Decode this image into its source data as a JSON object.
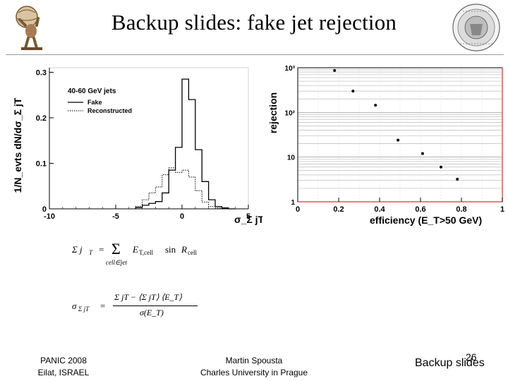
{
  "slide": {
    "title": "Backup slides: fake jet rejection",
    "footer_left_line1": "PANIC 2008",
    "footer_left_line2": "Eilat, ISRAEL",
    "footer_center_line1": "Martin Spousta",
    "footer_center_line2": "Charles University in Prague",
    "footer_right": "Backup slides",
    "slide_number": "26"
  },
  "chart_data": [
    {
      "type": "line",
      "legend_title": "40-60 GeV jets",
      "ylabel": "1/N_evts dN/dσ_Σ jT",
      "xlabel": "σ_Σ jT",
      "x_ticks": [
        "-10",
        "-5",
        "0",
        "5"
      ],
      "y_ticks": [
        "0",
        "0.1",
        "0.2",
        "0.3"
      ],
      "xlim": [
        -10,
        5
      ],
      "ylim": [
        0,
        0.31
      ],
      "bin_edges": [
        -3.5,
        -3,
        -2.5,
        -2,
        -1.5,
        -1,
        -0.5,
        0,
        0.5,
        1,
        1.5,
        2,
        2.5,
        3,
        3.5,
        4
      ],
      "legend_position": "top-left",
      "series": [
        {
          "name": "Fake",
          "style": "solid",
          "values": [
            0.003,
            0.008,
            0.012,
            0.016,
            0.035,
            0.085,
            0.135,
            0.285,
            0.24,
            0.13,
            0.06,
            0.02,
            0.005,
            0.002,
            0.0
          ]
        },
        {
          "name": "Reconstructed",
          "style": "dotted",
          "values": [
            0.005,
            0.02,
            0.035,
            0.048,
            0.075,
            0.09,
            0.08,
            0.085,
            0.07,
            0.04,
            0.015,
            0.005,
            0.002,
            0.0,
            0.0
          ]
        }
      ]
    },
    {
      "type": "scatter",
      "ylabel": "rejection",
      "xlabel": "efficiency (E_T>50 GeV)",
      "x_ticks": [
        "0",
        "0.2",
        "0.4",
        "0.6",
        "0.8",
        "1"
      ],
      "y_ticks": [
        "1",
        "10",
        "10²",
        "10³"
      ],
      "xlim": [
        0,
        1
      ],
      "ylim": [
        1,
        1000
      ],
      "y_scale": "log",
      "grid": true,
      "x": [
        0.18,
        0.27,
        0.38,
        0.49,
        0.61,
        0.7,
        0.78
      ],
      "y": [
        870,
        300,
        145,
        24,
        12,
        6,
        3.2
      ]
    }
  ],
  "formulas": {
    "f1_lhs": "Σ j",
    "f1_lhs_sub": "T",
    "f1_eq": "=",
    "f1_sum": "Σ",
    "f1_sum_sub": "cell∈jet",
    "f1_term": "E",
    "f1_term_sub": "T,cell",
    "f1_sin": "sin",
    "f1_R": "R",
    "f1_R_sub": "cell",
    "f2_lhs": "σ",
    "f2_lhs_sub": "Σ jT",
    "f2_eq": "=",
    "f2_num": "Σ jT − ⟨Σ jT⟩ ⟨E_T⟩",
    "f2_den": "σ(E_T)"
  }
}
